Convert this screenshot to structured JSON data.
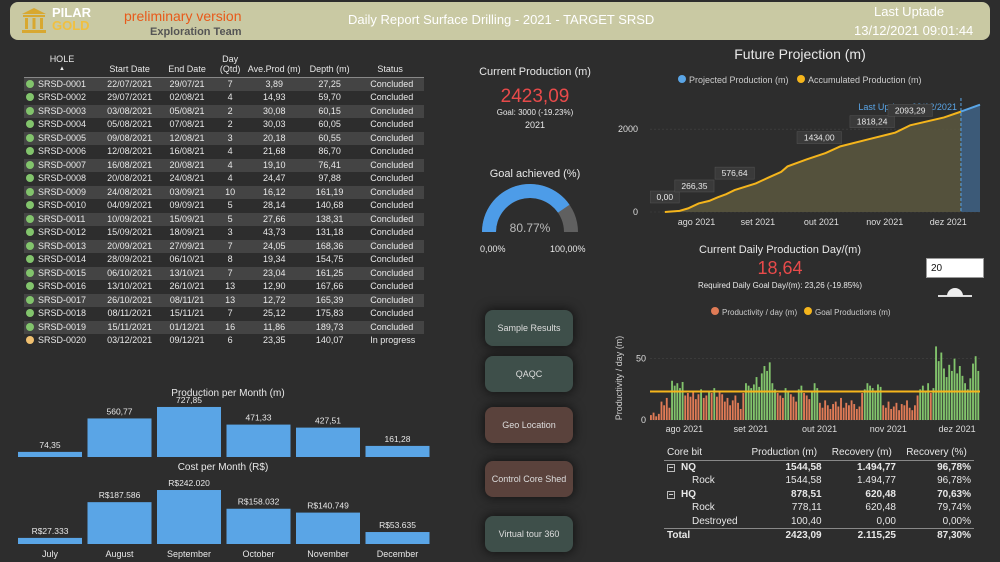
{
  "header": {
    "logo_line1": "PILAR",
    "logo_line2": "GOLD",
    "preliminary": "preliminary version",
    "team": "Exploration Team",
    "title": "Daily Report Surface Drilling - 2021 - TARGET SRSD",
    "last_update_label": "Last Uptade",
    "last_update_value": "13/12/2021 09:01:44"
  },
  "colors": {
    "accent_blue": "#5aa5e6",
    "accent_orange": "#f5b51c",
    "concluded": "#82c46c",
    "in_progress": "#f0c070",
    "red_value": "#e84a4a",
    "bar_productivity": "#e07b56",
    "bar_green": "#82c46c"
  },
  "holes_table": {
    "columns": [
      "HOLE",
      "Start Date",
      "End Date",
      "Day (Qtd)",
      "Ave.Prod (m)",
      "Depth (m)",
      "Status"
    ],
    "rows": [
      [
        "SRSD-0001",
        "22/07/2021",
        "29/07/21",
        "7",
        "3,89",
        "27,25",
        "Concluded"
      ],
      [
        "SRSD-0002",
        "29/07/2021",
        "02/08/21",
        "4",
        "14,93",
        "59,70",
        "Concluded"
      ],
      [
        "SRSD-0003",
        "03/08/2021",
        "05/08/21",
        "2",
        "30,08",
        "60,15",
        "Concluded"
      ],
      [
        "SRSD-0004",
        "05/08/2021",
        "07/08/21",
        "2",
        "30,03",
        "60,05",
        "Concluded"
      ],
      [
        "SRSD-0005",
        "09/08/2021",
        "12/08/21",
        "3",
        "20,18",
        "60,55",
        "Concluded"
      ],
      [
        "SRSD-0006",
        "12/08/2021",
        "16/08/21",
        "4",
        "21,68",
        "86,70",
        "Concluded"
      ],
      [
        "SRSD-0007",
        "16/08/2021",
        "20/08/21",
        "4",
        "19,10",
        "76,41",
        "Concluded"
      ],
      [
        "SRSD-0008",
        "20/08/2021",
        "24/08/21",
        "4",
        "24,47",
        "97,88",
        "Concluded"
      ],
      [
        "SRSD-0009",
        "24/08/2021",
        "03/09/21",
        "10",
        "16,12",
        "161,19",
        "Concluded"
      ],
      [
        "SRSD-0010",
        "04/09/2021",
        "09/09/21",
        "5",
        "28,14",
        "140,68",
        "Concluded"
      ],
      [
        "SRSD-0011",
        "10/09/2021",
        "15/09/21",
        "5",
        "27,66",
        "138,31",
        "Concluded"
      ],
      [
        "SRSD-0012",
        "15/09/2021",
        "18/09/21",
        "3",
        "43,73",
        "131,18",
        "Concluded"
      ],
      [
        "SRSD-0013",
        "20/09/2021",
        "27/09/21",
        "7",
        "24,05",
        "168,36",
        "Concluded"
      ],
      [
        "SRSD-0014",
        "28/09/2021",
        "06/10/21",
        "8",
        "19,34",
        "154,75",
        "Concluded"
      ],
      [
        "SRSD-0015",
        "06/10/2021",
        "13/10/21",
        "7",
        "23,04",
        "161,25",
        "Concluded"
      ],
      [
        "SRSD-0016",
        "13/10/2021",
        "26/10/21",
        "13",
        "12,90",
        "167,66",
        "Concluded"
      ],
      [
        "SRSD-0017",
        "26/10/2021",
        "08/11/21",
        "13",
        "12,72",
        "165,39",
        "Concluded"
      ],
      [
        "SRSD-0018",
        "08/11/2021",
        "15/11/21",
        "7",
        "25,12",
        "175,83",
        "Concluded"
      ],
      [
        "SRSD-0019",
        "15/11/2021",
        "01/12/21",
        "16",
        "11,86",
        "189,73",
        "Concluded"
      ],
      [
        "SRSD-0020",
        "03/12/2021",
        "09/12/21",
        "6",
        "23,35",
        "140,07",
        "In progress"
      ]
    ]
  },
  "current_production": {
    "title": "Current Production (m)",
    "value": "2423,09",
    "goal": "Goal: 3000 (-19.23%)",
    "year": "2021"
  },
  "goal_gauge": {
    "title": "Goal achieved (%)",
    "value_label": "80.77%",
    "fraction": 0.8077,
    "min_label": "0,00%",
    "max_label": "100,00%"
  },
  "buttons": {
    "sample_results": "Sample Results",
    "qaqc": "QAQC",
    "geo_location": "Geo Location",
    "control_core_shed": "Control Core Shed",
    "virtual_tour": "Virtual tour 360"
  },
  "daily": {
    "title": "Current Daily Production Day/(m)",
    "value": "18,64",
    "required": "Required Daily Goal Day/(m): 23,26 (-19.85%)",
    "days_input": "20"
  },
  "core_table": {
    "columns": [
      "Core bit",
      "Production (m)",
      "Recovery (m)",
      "Recovery (%)"
    ],
    "rows": [
      {
        "label": "NQ",
        "group": true,
        "values": [
          "1544,58",
          "1.494,77",
          "96,78%"
        ]
      },
      {
        "label": "Rock",
        "group": false,
        "values": [
          "1544,58",
          "1.494,77",
          "96,78%"
        ]
      },
      {
        "label": "HQ",
        "group": true,
        "values": [
          "878,51",
          "620,48",
          "70,63%"
        ]
      },
      {
        "label": "Rock",
        "group": false,
        "values": [
          "778,11",
          "620,48",
          "79,74%"
        ]
      },
      {
        "label": "Destroyed",
        "group": false,
        "values": [
          "100,40",
          "0,00",
          "0,00%"
        ]
      },
      {
        "label": "Total",
        "group": "total",
        "values": [
          "2423,09",
          "2.115,25",
          "87,30%"
        ]
      }
    ]
  },
  "chart_data": [
    {
      "id": "production_per_month",
      "type": "bar",
      "title": "Production per Month (m)",
      "categories": [
        "July",
        "August",
        "September",
        "October",
        "November",
        "December"
      ],
      "values": [
        74.35,
        560.77,
        727.85,
        471.33,
        427.51,
        161.28
      ],
      "labels": [
        "74,35",
        "560,77",
        "727,85",
        "471,33",
        "427,51",
        "161,28"
      ],
      "ylim": [
        0,
        800
      ]
    },
    {
      "id": "cost_per_month",
      "type": "bar",
      "title": "Cost per Month (R$)",
      "categories": [
        "July",
        "August",
        "September",
        "October",
        "November",
        "December"
      ],
      "values": [
        27333,
        187586,
        242020,
        158032,
        140749,
        53635
      ],
      "labels": [
        "R$27.333",
        "R$187.586",
        "R$242.020",
        "R$158.032",
        "R$140.749",
        "R$53.635"
      ],
      "ylim": [
        0,
        260000
      ]
    },
    {
      "id": "future_projection",
      "type": "area",
      "title": "Future Projection (m)",
      "legend": [
        "Projected Production (m)",
        "Accumulated Production  (m)"
      ],
      "annotation": "Last Update: 09/12/2021",
      "x_ticks": [
        "ago 2021",
        "set 2021",
        "out 2021",
        "nov 2021",
        "dez 2021"
      ],
      "y_ticks": [
        0,
        2000
      ],
      "ylim": [
        0,
        2800
      ],
      "accumulated": {
        "x": [
          "2021-07-22",
          "2021-07-29",
          "2021-08-02",
          "2021-08-07",
          "2021-08-12",
          "2021-08-16",
          "2021-08-20",
          "2021-08-24",
          "2021-09-03",
          "2021-09-09",
          "2021-09-15",
          "2021-09-18",
          "2021-09-27",
          "2021-10-06",
          "2021-10-13",
          "2021-10-26",
          "2021-11-08",
          "2021-11-15",
          "2021-12-01",
          "2021-12-09"
        ],
        "y": [
          0,
          27,
          87,
          207,
          268,
          355,
          431,
          529,
          690,
          831,
          969,
          1100,
          1268,
          1423,
          1584,
          1752,
          1917,
          2093,
          2283,
          2423
        ]
      },
      "projected": {
        "x": [
          "2021-12-09",
          "2021-12-18"
        ],
        "y": [
          2423,
          2590
        ]
      },
      "point_labels": [
        {
          "x": "2021-07-22",
          "y": 0,
          "label": "0,00"
        },
        {
          "x": "2021-08-05",
          "y": 266.35,
          "label": "266,35"
        },
        {
          "x": "2021-08-24",
          "y": 576.64,
          "label": "576,64"
        },
        {
          "x": "2021-10-03",
          "y": 1434.0,
          "label": "1434,00"
        },
        {
          "x": "2021-10-28",
          "y": 1818.24,
          "label": "1818,24"
        },
        {
          "x": "2021-11-15",
          "y": 2093.29,
          "label": "2093,29"
        }
      ],
      "last_update_x": "2021-12-09",
      "x_range": [
        "2021-07-15",
        "2021-12-18"
      ]
    },
    {
      "id": "daily_productivity",
      "type": "bar",
      "legend": [
        "Productivity / day (m)",
        "Goal Productions (m)"
      ],
      "ylabel": "Productivity / day (m)",
      "y_ticks": [
        0,
        50
      ],
      "ylim": [
        0,
        75
      ],
      "goal": 23.26,
      "x_ticks": [
        "ago 2021",
        "set 2021",
        "out 2021",
        "nov 2021",
        "dez 2021"
      ],
      "x_range": [
        "2021-07-22",
        "2021-12-13"
      ],
      "values": [
        4,
        6,
        3,
        5,
        15,
        12,
        18,
        10,
        32,
        28,
        30,
        26,
        31,
        20,
        22,
        19,
        23,
        17,
        21,
        25,
        18,
        20,
        24,
        22,
        26,
        19,
        23,
        21,
        15,
        18,
        12,
        16,
        20,
        14,
        9,
        22,
        30,
        28,
        26,
        29,
        35,
        27,
        38,
        44,
        40,
        47,
        30,
        25,
        22,
        20,
        18,
        26,
        24,
        21,
        19,
        15,
        25,
        28,
        22,
        20,
        17,
        24,
        30,
        26,
        14,
        10,
        16,
        12,
        9,
        13,
        15,
        11,
        18,
        10,
        14,
        12,
        16,
        13,
        9,
        11,
        22,
        25,
        30,
        28,
        26,
        24,
        29,
        27,
        12,
        10,
        15,
        9,
        11,
        14,
        8,
        13,
        12,
        16,
        10,
        8,
        12,
        20,
        25,
        28,
        24,
        30,
        22,
        26,
        60,
        48,
        55,
        42,
        35,
        45,
        40,
        50,
        38,
        44,
        36,
        30,
        25,
        34,
        46,
        52,
        40
      ]
    }
  ]
}
